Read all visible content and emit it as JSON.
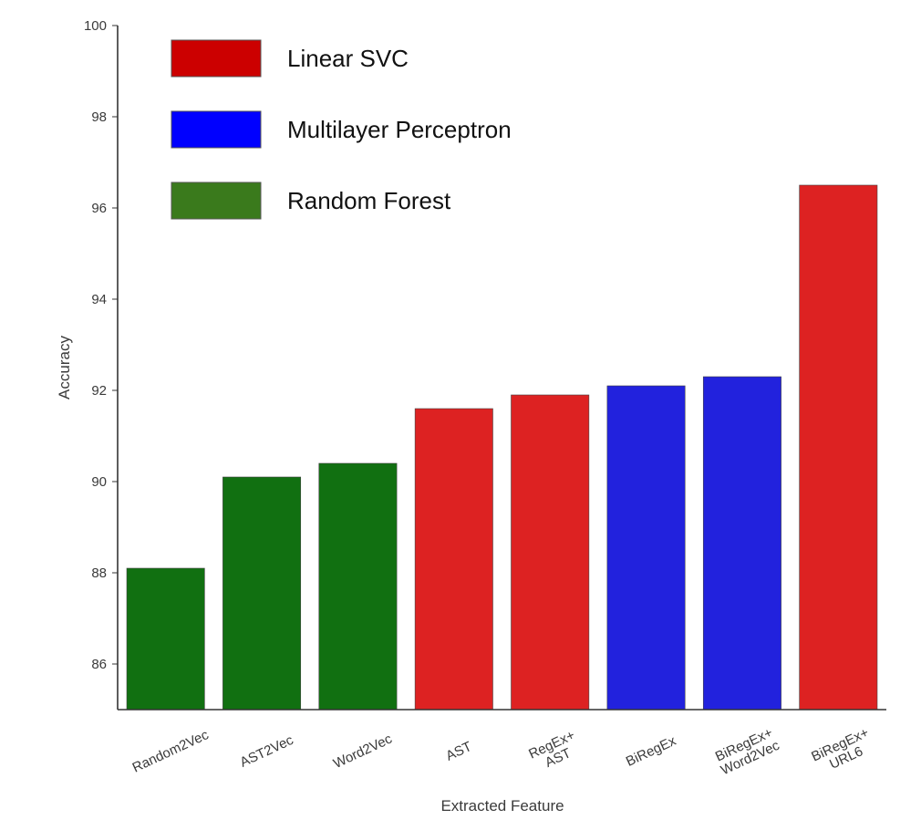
{
  "chart_data": {
    "type": "bar",
    "xlabel": "Extracted Feature",
    "ylabel": "Accuracy",
    "ylim": [
      85,
      100
    ],
    "yticks": [
      86,
      88,
      90,
      92,
      94,
      96,
      98,
      100
    ],
    "grid": false,
    "legend_placement": "top-left",
    "legend": [
      {
        "name": "Linear SVC",
        "color": "#cc0000"
      },
      {
        "name": "Multilayer Perceptron",
        "color": "#0000ff"
      },
      {
        "name": "Random Forest",
        "color": "#3a7a1c"
      }
    ],
    "categories": [
      [
        "Random2Vec"
      ],
      [
        "AST2Vec"
      ],
      [
        "Word2Vec"
      ],
      [
        "AST"
      ],
      [
        "RegEx+",
        "AST"
      ],
      [
        "BiRegEx"
      ],
      [
        "BiRegEx+",
        "Word2Vec"
      ],
      [
        "BiRegEx+",
        "URL6"
      ]
    ],
    "values": [
      88.1,
      90.1,
      90.4,
      91.6,
      91.9,
      92.1,
      92.3,
      96.5
    ],
    "bar_model": [
      "Random Forest",
      "Random Forest",
      "Random Forest",
      "Linear SVC",
      "Linear SVC",
      "Multilayer Perceptron",
      "Multilayer Perceptron",
      "Linear SVC"
    ],
    "bar_colors": {
      "Linear SVC": "#dd2222",
      "Multilayer Perceptron": "#2222dd",
      "Random Forest": "#117011"
    }
  }
}
